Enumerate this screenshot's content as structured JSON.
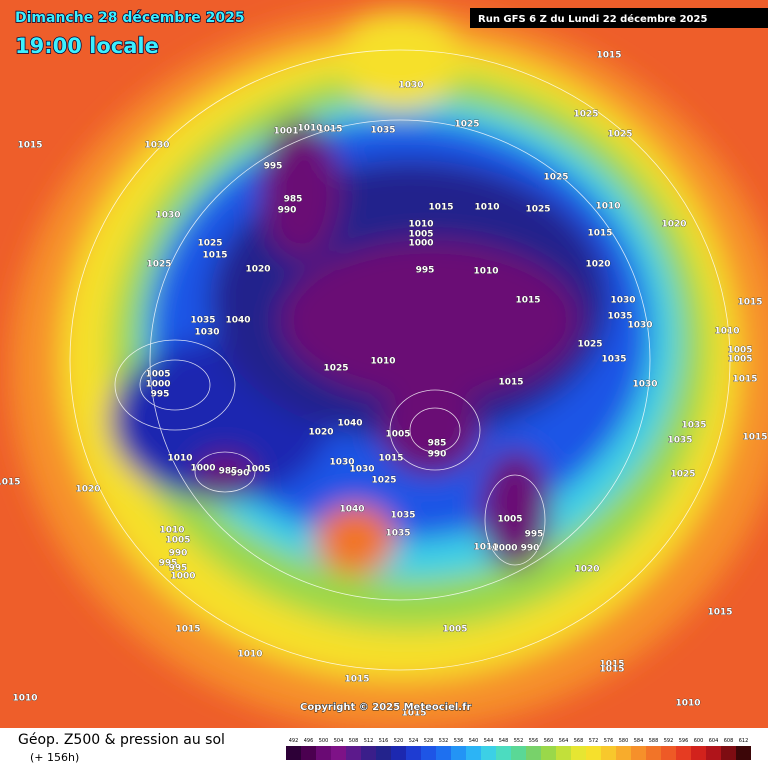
{
  "header": {
    "date": "Dimanche 28 décembre 2025",
    "time": "19:00 locale",
    "run": "Run GFS 6 Z du Lundi 22 décembre 2025"
  },
  "copyright": "Copyright © 2025 Meteociel.fr",
  "footer": {
    "title": "Géop. Z500 & pression au sol",
    "lead": "(+ 156h)"
  },
  "pressure_labels": [
    "1015",
    "1030",
    "1015",
    "1030",
    "1025",
    "1035",
    "1001",
    "1010",
    "1015",
    "1025",
    "1025",
    "995",
    "985",
    "990",
    "1025",
    "1015",
    "1010",
    "1025",
    "1010",
    "1030",
    "1010",
    "1005",
    "1000",
    "1015",
    "1020",
    "1025",
    "1015",
    "995",
    "1010",
    "1020",
    "1025",
    "1020",
    "1015",
    "1030",
    "1015",
    "1035",
    "1040",
    "1035",
    "1030",
    "1030",
    "1010",
    "1025",
    "1005",
    "1005",
    "1010",
    "1025",
    "1035",
    "1005",
    "1000",
    "995",
    "1015",
    "1030",
    "1015",
    "1040",
    "1020",
    "1005",
    "985",
    "990",
    "1035",
    "1035",
    "1015",
    "1010",
    "1000",
    "985",
    "990",
    "1005",
    "1030",
    "1030",
    "1015",
    "1025",
    "1025",
    "1020",
    "1015",
    "1040",
    "1035",
    "1035",
    "1005",
    "995",
    "1010",
    "1000",
    "990",
    "1010",
    "1005",
    "990",
    "995",
    "995",
    "1000",
    "1020",
    "1015",
    "1005",
    "1015",
    "1010",
    "1015",
    "1015",
    "1015",
    "1010",
    "1010",
    "1015"
  ],
  "scale": {
    "values": [
      492,
      496,
      500,
      504,
      508,
      512,
      516,
      520,
      524,
      528,
      532,
      536,
      540,
      544,
      548,
      552,
      556,
      560,
      564,
      568,
      572,
      576,
      580,
      584,
      588,
      592,
      596,
      600,
      604,
      608,
      612
    ],
    "colors": [
      "#2d0037",
      "#4b0050",
      "#6a0a74",
      "#7e1287",
      "#5c1a8c",
      "#3a1e8a",
      "#23238c",
      "#1c28b0",
      "#1e3cd2",
      "#1e55e6",
      "#1e70f0",
      "#2394f5",
      "#2cb4f5",
      "#3cd0e6",
      "#4cdcc0",
      "#5ad896",
      "#78d26a",
      "#9ad84a",
      "#c2e03a",
      "#e6e632",
      "#f6e02c",
      "#f8c82c",
      "#f8ac2c",
      "#f6902a",
      "#f27428",
      "#ee5a26",
      "#e63c22",
      "#d2221c",
      "#b0141a",
      "#7e0c12",
      "#3c0608"
    ]
  }
}
